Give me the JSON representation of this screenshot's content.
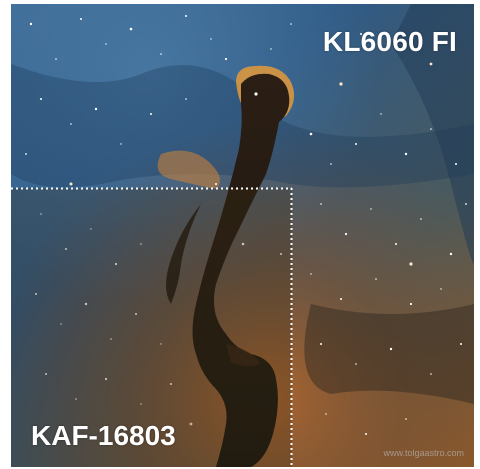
{
  "image": {
    "top_right_label": "KL6060 FI",
    "bottom_left_label": "KAF-16803",
    "watermark": "www.tolgaastro.com"
  },
  "colors": {
    "sky_blue": "#2f5a86",
    "dust_orange": "#b8672a",
    "nebula_dark": "#1a1710",
    "overlay_tint": "#3b2a12",
    "dotted_line": "#ffffff",
    "label_text": "#ffffff"
  }
}
